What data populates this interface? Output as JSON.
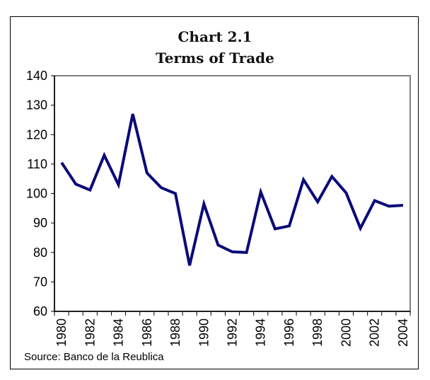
{
  "chart_data": {
    "type": "line",
    "title": "Chart 2.1",
    "subtitle": "Terms of Trade",
    "xlabel": "",
    "ylabel": "",
    "source": "Source: Banco de la Reublica",
    "x": [
      1980,
      1981,
      1982,
      1983,
      1984,
      1985,
      1986,
      1987,
      1988,
      1989,
      1990,
      1991,
      1992,
      1993,
      1994,
      1995,
      1996,
      1997,
      1998,
      1999,
      2000,
      2001,
      2002,
      2003,
      2004
    ],
    "x_tick_labels": [
      "1980",
      "1982",
      "1984",
      "1986",
      "1988",
      "1990",
      "1992",
      "1994",
      "1996",
      "1998",
      "2000",
      "2002",
      "2004"
    ],
    "y_tick_labels": [
      "60",
      "70",
      "80",
      "90",
      "100",
      "110",
      "120",
      "130",
      "140"
    ],
    "ylim": [
      60,
      140
    ],
    "y_ticks": [
      60,
      70,
      80,
      90,
      100,
      110,
      120,
      130,
      140
    ],
    "grid": false,
    "legend": "none",
    "series": [
      {
        "name": "Terms of Trade",
        "color": "#0a0a78",
        "values": [
          110.5,
          103.2,
          101.2,
          113,
          103,
          127,
          107,
          102,
          100,
          75.6,
          96.5,
          82.5,
          80.2,
          80,
          100.5,
          88,
          89,
          104.7,
          97.2,
          105.8,
          100.2,
          88.2,
          97.6,
          95.7,
          96
        ]
      }
    ]
  }
}
